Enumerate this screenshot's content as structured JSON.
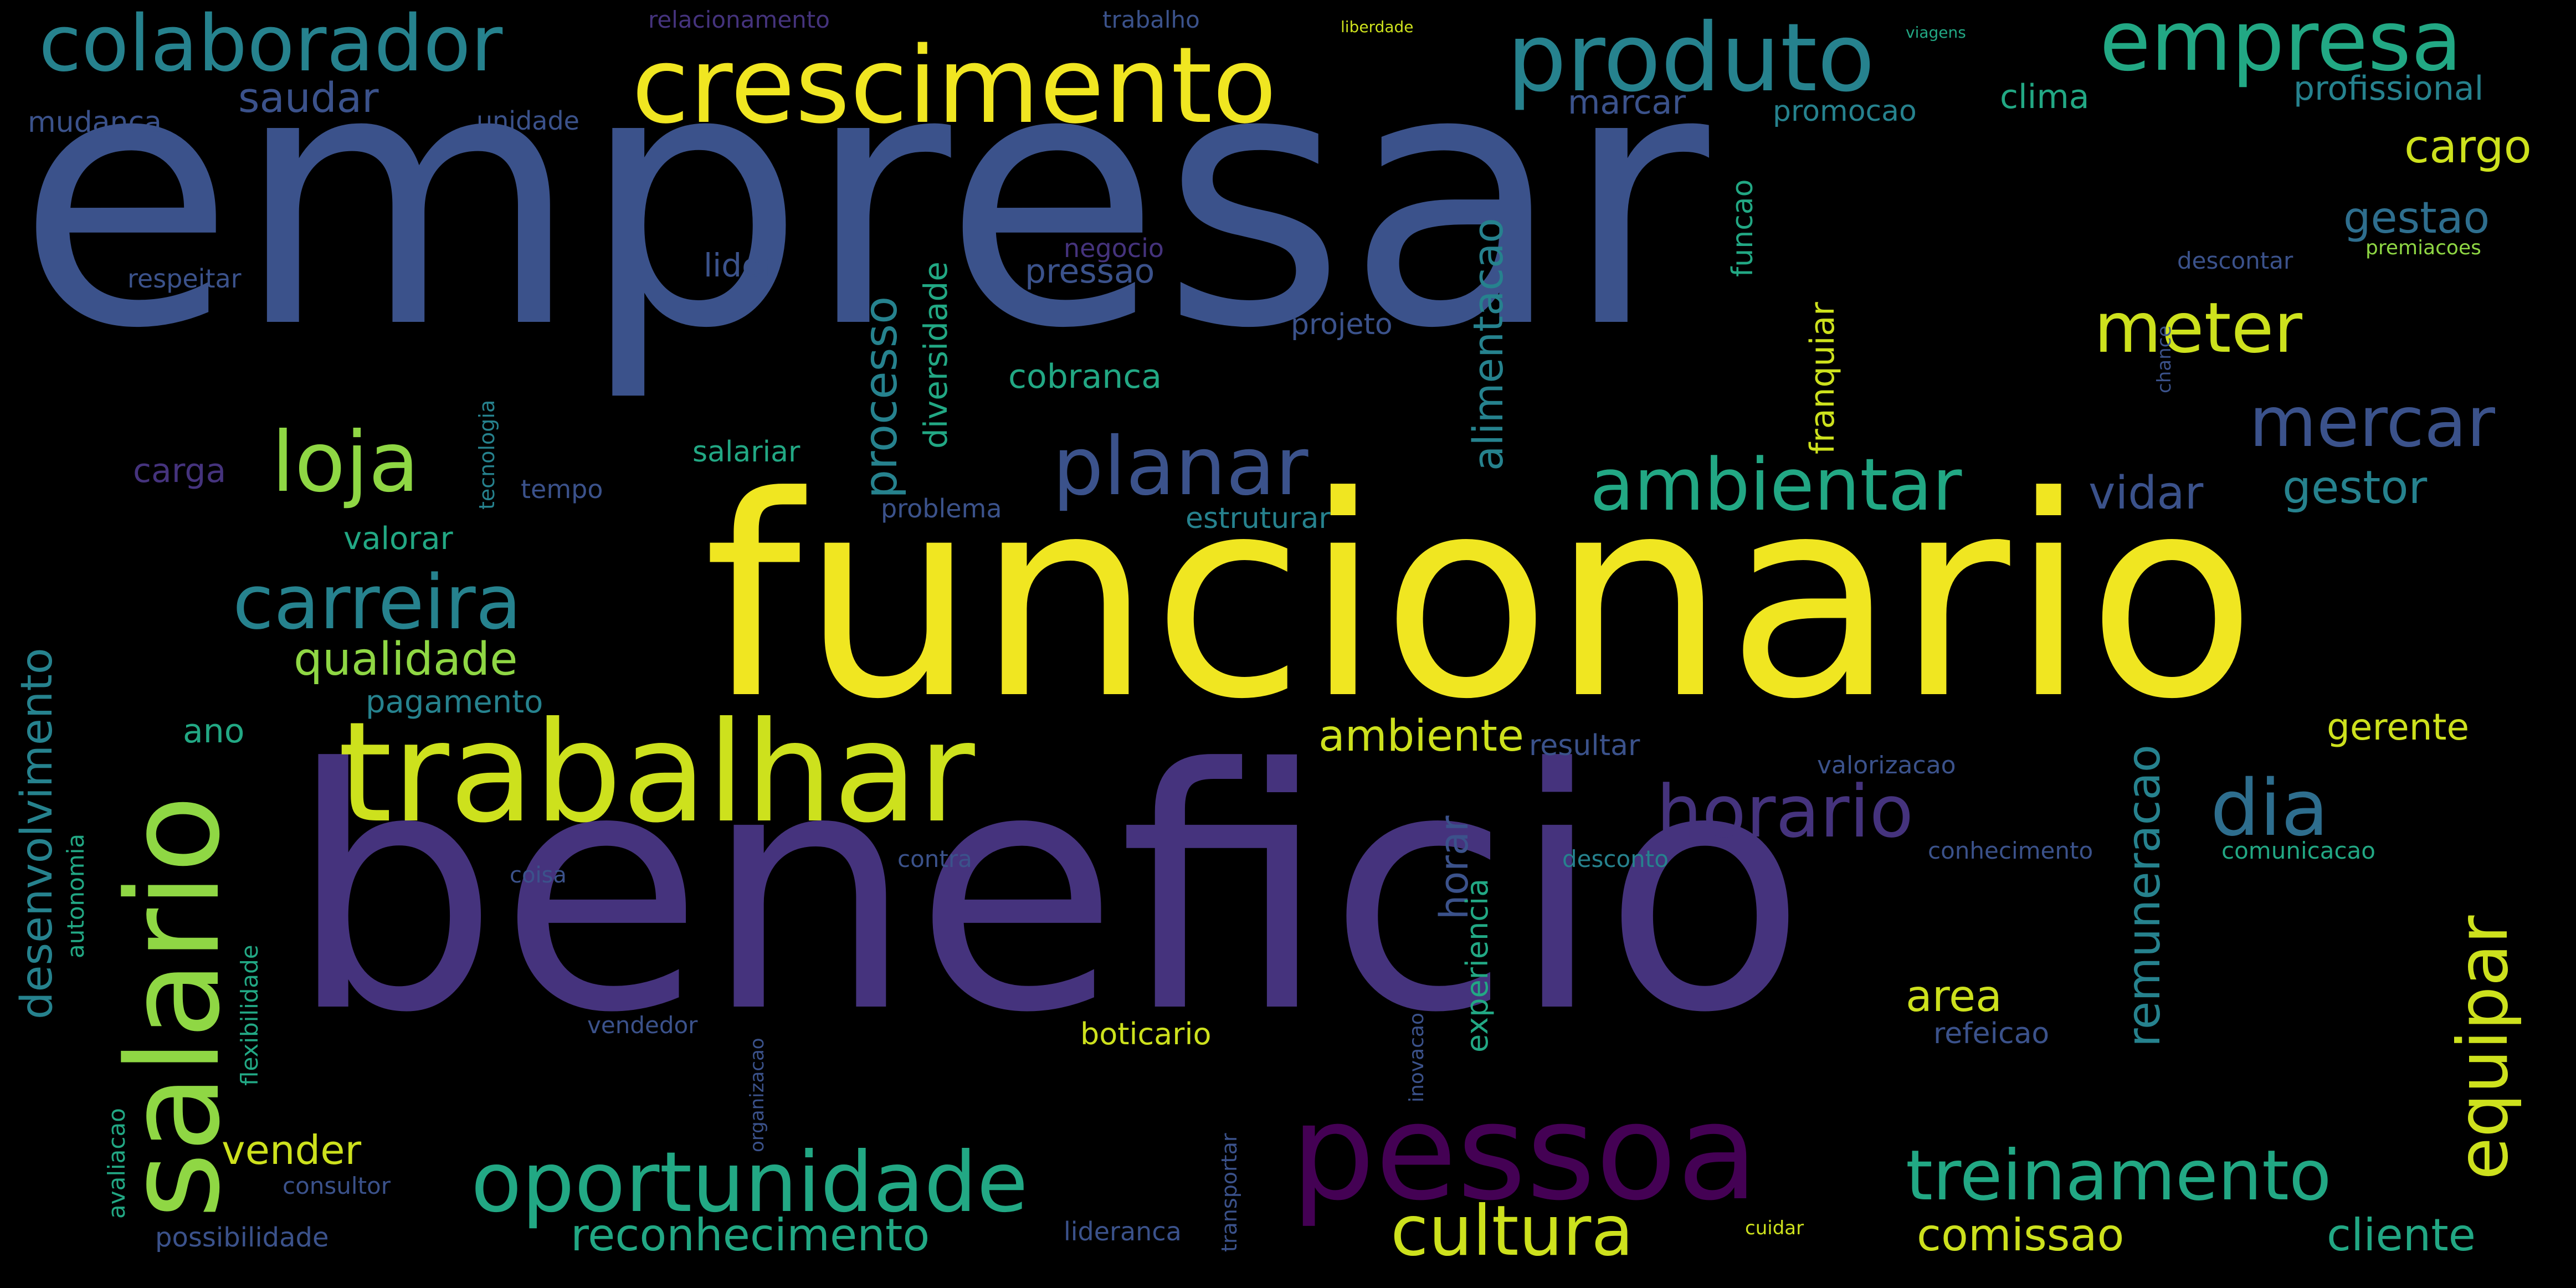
{
  "colors": {
    "yellow": "#f0e621",
    "yellowgreen": "#cde11d",
    "lightgreen": "#8fd744",
    "green": "#4ac16d",
    "teal": "#22a884",
    "cyan": "#26828e",
    "steel": "#2e6e8e",
    "blue": "#3b528b",
    "indigo": "#45337d",
    "purple": "#440154"
  },
  "words": [
    {
      "text": "empresar",
      "color": "blue"
    },
    {
      "text": "funcionario",
      "color": "yellow"
    },
    {
      "text": "beneficio",
      "color": "indigo"
    },
    {
      "text": "trabalhar",
      "color": "yellowgreen"
    },
    {
      "text": "salario",
      "color": "lightgreen"
    },
    {
      "text": "crescimento",
      "color": "yellow"
    },
    {
      "text": "produto",
      "color": "cyan"
    },
    {
      "text": "empresa",
      "color": "teal"
    },
    {
      "text": "colaborador",
      "color": "cyan"
    },
    {
      "text": "pessoa",
      "color": "purple"
    },
    {
      "text": "oportunidade",
      "color": "teal"
    },
    {
      "text": "treinamento",
      "color": "teal"
    },
    {
      "text": "cultura",
      "color": "yellowgreen"
    },
    {
      "text": "horario",
      "color": "indigo"
    },
    {
      "text": "dia",
      "color": "steel"
    },
    {
      "text": "ambientar",
      "color": "teal"
    },
    {
      "text": "planar",
      "color": "blue"
    },
    {
      "text": "loja",
      "color": "lightgreen"
    },
    {
      "text": "carreira",
      "color": "cyan"
    },
    {
      "text": "meter",
      "color": "yellowgreen"
    },
    {
      "text": "mercar",
      "color": "blue"
    },
    {
      "text": "equipar",
      "color": "yellowgreen"
    },
    {
      "text": "reconhecimento",
      "color": "teal"
    },
    {
      "text": "comissao",
      "color": "yellowgreen"
    },
    {
      "text": "cliente",
      "color": "teal"
    },
    {
      "text": "desenvolvimento",
      "color": "cyan"
    },
    {
      "text": "qualidade",
      "color": "lightgreen"
    },
    {
      "text": "remuneracao",
      "color": "cyan"
    },
    {
      "text": "processo",
      "color": "cyan"
    },
    {
      "text": "alimentacao",
      "color": "cyan"
    },
    {
      "text": "gestor",
      "color": "cyan"
    },
    {
      "text": "vidar",
      "color": "blue"
    },
    {
      "text": "ambiente",
      "color": "yellowgreen"
    },
    {
      "text": "cargo",
      "color": "yellowgreen"
    },
    {
      "text": "gestao",
      "color": "steel"
    },
    {
      "text": "saudar",
      "color": "blue"
    },
    {
      "text": "marcar",
      "color": "blue"
    },
    {
      "text": "promocao",
      "color": "cyan"
    },
    {
      "text": "clima",
      "color": "teal"
    },
    {
      "text": "profissional",
      "color": "cyan"
    },
    {
      "text": "mudanca",
      "color": "blue"
    },
    {
      "text": "unidade",
      "color": "blue"
    },
    {
      "text": "relacionamento",
      "color": "indigo"
    },
    {
      "text": "trabalho",
      "color": "blue"
    },
    {
      "text": "liberdade",
      "color": "yellowgreen"
    },
    {
      "text": "viagens",
      "color": "teal"
    },
    {
      "text": "funcao",
      "color": "teal"
    },
    {
      "text": "lider",
      "color": "blue"
    },
    {
      "text": "negocio",
      "color": "indigo"
    },
    {
      "text": "diversidade",
      "color": "teal"
    },
    {
      "text": "franquiar",
      "color": "yellowgreen"
    },
    {
      "text": "pressao",
      "color": "blue"
    },
    {
      "text": "cobranca",
      "color": "teal"
    },
    {
      "text": "projeto",
      "color": "blue"
    },
    {
      "text": "respeitar",
      "color": "blue"
    },
    {
      "text": "tecnologia",
      "color": "cyan"
    },
    {
      "text": "salariar",
      "color": "teal"
    },
    {
      "text": "carga",
      "color": "indigo"
    },
    {
      "text": "tempo",
      "color": "blue"
    },
    {
      "text": "valorar",
      "color": "teal"
    },
    {
      "text": "problema",
      "color": "blue"
    },
    {
      "text": "estruturar",
      "color": "cyan"
    },
    {
      "text": "ano",
      "color": "teal"
    },
    {
      "text": "pagamento",
      "color": "cyan"
    },
    {
      "text": "area",
      "color": "yellowgreen"
    },
    {
      "text": "refeicao",
      "color": "blue"
    },
    {
      "text": "horar",
      "color": "blue"
    },
    {
      "text": "experiencia",
      "color": "teal"
    },
    {
      "text": "resultar",
      "color": "blue"
    },
    {
      "text": "valorizacao",
      "color": "blue"
    },
    {
      "text": "gerente",
      "color": "yellowgreen"
    },
    {
      "text": "conhecimento",
      "color": "blue"
    },
    {
      "text": "comunicacao",
      "color": "teal"
    },
    {
      "text": "desconto",
      "color": "cyan"
    },
    {
      "text": "contra",
      "color": "blue"
    },
    {
      "text": "boticario",
      "color": "yellowgreen"
    },
    {
      "text": "vender",
      "color": "yellowgreen"
    },
    {
      "text": "vendedor",
      "color": "blue"
    },
    {
      "text": "consultor",
      "color": "blue"
    },
    {
      "text": "possibilidade",
      "color": "blue"
    },
    {
      "text": "lideranca",
      "color": "blue"
    },
    {
      "text": "cuidar",
      "color": "yellowgreen"
    },
    {
      "text": "autonomia",
      "color": "teal"
    },
    {
      "text": "flexibilidade",
      "color": "teal"
    },
    {
      "text": "avaliacao",
      "color": "teal"
    },
    {
      "text": "premiacoes",
      "color": "lightgreen"
    },
    {
      "text": "descontar",
      "color": "blue"
    },
    {
      "text": "chance",
      "color": "blue"
    },
    {
      "text": "coisa",
      "color": "blue"
    },
    {
      "text": "inovacao",
      "color": "blue"
    },
    {
      "text": "transportar",
      "color": "blue"
    },
    {
      "text": "organizacao",
      "color": "blue"
    }
  ]
}
